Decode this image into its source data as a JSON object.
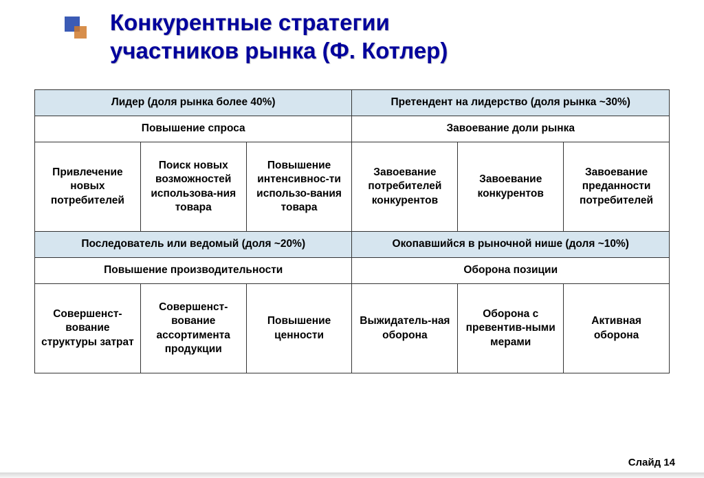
{
  "title_line1": "Конкурентные стратегии",
  "title_line2": "участников рынка (Ф. Котлер)",
  "colors": {
    "title_color": "#00009c",
    "header_bg": "#d6e5ef",
    "border": "#333333",
    "bullet_blue": "#3b5bb5",
    "bullet_orange": "#d07a2b"
  },
  "table": {
    "block1": {
      "left_header": "Лидер (доля рынка более 40%)",
      "right_header": "Претендент на лидерство (доля рынка ~30%)",
      "left_sub": "Повышение спроса",
      "right_sub": "Завоевание доли рынка",
      "cells": [
        "Привлечение новых потребителей",
        "Поиск новых возможностей использова-ния товара",
        "Повышение интенсивнос-ти использо-вания товара",
        "Завоевание потребителей конкурентов",
        "Завоевание конкурентов",
        "Завоевание преданности потребителей"
      ]
    },
    "block2": {
      "left_header": "Последователь или ведомый (доля ~20%)",
      "right_header": "Окопавшийся в рыночной нише (доля ~10%)",
      "left_sub": "Повышение производительности",
      "right_sub": "Оборона позиции",
      "cells": [
        "Совершенст-вование структуры затрат",
        "Совершенст-вование ассортимента продукции",
        "Повышение ценности",
        "Выжидатель-ная оборона",
        "Оборона с превентив-ными мерами",
        "Активная оборона"
      ]
    }
  },
  "footer": "Слайд 14"
}
